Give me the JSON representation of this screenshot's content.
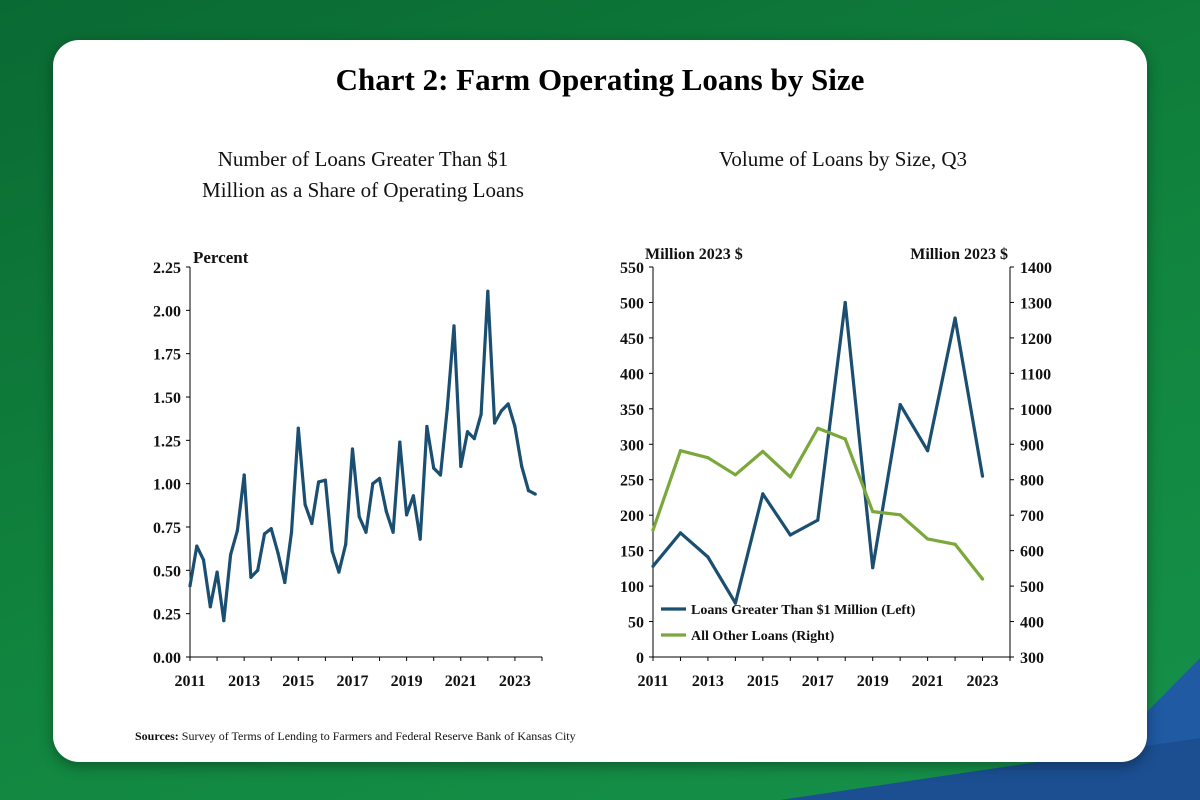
{
  "title": "Chart 2: Farm Operating Loans by Size",
  "sources_label": "Sources:",
  "sources_text": "Survey of Terms of Lending to Farmers and Federal Reserve Bank of Kansas City",
  "colors": {
    "navy": "#1b4f72",
    "olive": "#7aa83a",
    "green_bg": "#0d7a3a",
    "blue_bg": "#1f5aa3"
  },
  "chart_data": [
    {
      "type": "line",
      "title": "Number of Loans Greater Than $1 Million as a Share of Operating Loans",
      "title_lines": [
        "Number of Loans Greater Than $1",
        "Million as a Share of Operating Loans"
      ],
      "unit_label": "Percent",
      "ylim": [
        0,
        2.25
      ],
      "yticks": [
        "0.00",
        "0.25",
        "0.50",
        "0.75",
        "1.00",
        "1.25",
        "1.50",
        "1.75",
        "2.00",
        "2.25"
      ],
      "xlim": [
        2011,
        2024
      ],
      "xticks": [
        "2011",
        "2013",
        "2015",
        "2017",
        "2019",
        "2021",
        "2023"
      ],
      "grid": false,
      "series": [
        {
          "color": "#1b4f72",
          "x": [
            2011.0,
            2011.25,
            2011.5,
            2011.75,
            2012.0,
            2012.25,
            2012.5,
            2012.75,
            2013.0,
            2013.25,
            2013.5,
            2013.75,
            2014.0,
            2014.25,
            2014.5,
            2014.75,
            2015.0,
            2015.25,
            2015.5,
            2015.75,
            2016.0,
            2016.25,
            2016.5,
            2016.75,
            2017.0,
            2017.25,
            2017.5,
            2017.75,
            2018.0,
            2018.25,
            2018.5,
            2018.75,
            2019.0,
            2019.25,
            2019.5,
            2019.75,
            2020.0,
            2020.25,
            2020.5,
            2020.75,
            2021.0,
            2021.25,
            2021.5,
            2021.75,
            2022.0,
            2022.25,
            2022.5,
            2022.75,
            2023.0,
            2023.25,
            2023.5,
            2023.75
          ],
          "values": [
            0.41,
            0.64,
            0.56,
            0.29,
            0.49,
            0.21,
            0.59,
            0.73,
            1.05,
            0.46,
            0.5,
            0.71,
            0.74,
            0.6,
            0.43,
            0.72,
            1.32,
            0.88,
            0.77,
            1.01,
            1.02,
            0.61,
            0.49,
            0.65,
            1.2,
            0.81,
            0.72,
            1.0,
            1.03,
            0.84,
            0.72,
            1.24,
            0.82,
            0.93,
            0.68,
            1.33,
            1.09,
            1.05,
            1.43,
            1.91,
            1.1,
            1.3,
            1.26,
            1.4,
            2.11,
            1.35,
            1.42,
            1.46,
            1.33,
            1.1,
            0.96,
            0.94
          ]
        }
      ]
    },
    {
      "type": "line",
      "title": "Volume of Loans by Size, Q3",
      "left_unit_label": "Million  2023 $",
      "right_unit_label": "Million  2023 $",
      "ylim_left": [
        0,
        550
      ],
      "yticks_left": [
        "0",
        "50",
        "100",
        "150",
        "200",
        "250",
        "300",
        "350",
        "400",
        "450",
        "500",
        "550"
      ],
      "ylim_right": [
        300,
        1400
      ],
      "yticks_right": [
        "300",
        "400",
        "500",
        "600",
        "700",
        "800",
        "900",
        "1000",
        "1100",
        "1200",
        "1300",
        "1400"
      ],
      "xlim": [
        2011,
        2024
      ],
      "xticks": [
        "2011",
        "2013",
        "2015",
        "2017",
        "2019",
        "2021",
        "2023"
      ],
      "grid": false,
      "legend_position": "bottom-right",
      "series": [
        {
          "name": "Loans Greater Than $1 Million (Left)",
          "axis": "left",
          "color": "#1b4f72",
          "x": [
            2011,
            2012,
            2013,
            2014,
            2015,
            2016,
            2017,
            2018,
            2019,
            2020,
            2021,
            2022,
            2023
          ],
          "values": [
            128,
            175,
            141,
            76,
            230,
            172,
            193,
            500,
            126,
            356,
            291,
            478,
            255
          ]
        },
        {
          "name": "All Other Loans (Right)",
          "axis": "right",
          "color": "#7aa83a",
          "x": [
            2011,
            2012,
            2013,
            2014,
            2015,
            2016,
            2017,
            2018,
            2019,
            2020,
            2021,
            2022,
            2023
          ],
          "values": [
            658,
            882,
            862,
            814,
            880,
            808,
            945,
            915,
            710,
            701,
            633,
            618,
            520
          ]
        }
      ]
    }
  ]
}
